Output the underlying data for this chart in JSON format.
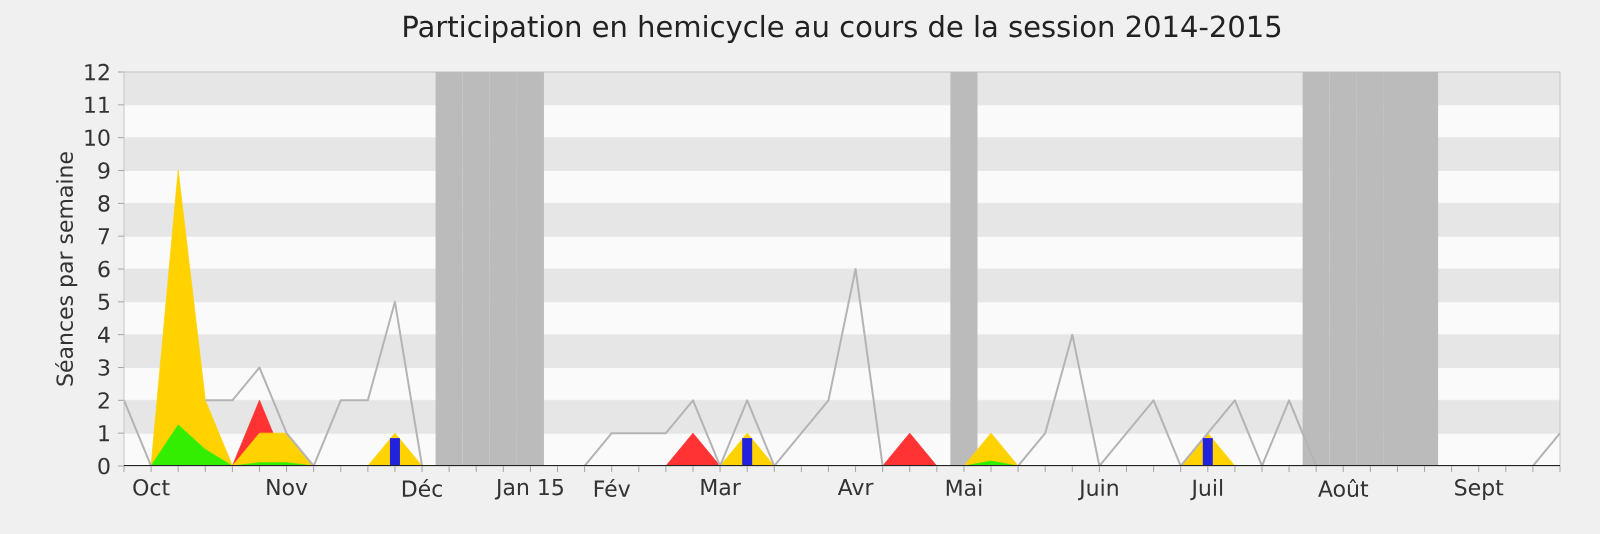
{
  "chart_data": {
    "type": "area",
    "title": "Participation en hemicycle au cours de la session 2014-2015",
    "ylabel": "Séances par semaine",
    "grid": "y",
    "categories": [
      null,
      "Oct",
      null,
      null,
      null,
      null,
      "Nov",
      null,
      null,
      null,
      null,
      "Déc",
      null,
      null,
      null,
      "Jan 15",
      null,
      null,
      "Fév",
      null,
      null,
      null,
      "Mar",
      null,
      null,
      null,
      null,
      "Avr",
      null,
      null,
      null,
      "Mai",
      null,
      null,
      null,
      null,
      "Juin",
      null,
      null,
      null,
      "Juil",
      null,
      null,
      null,
      null,
      "Août",
      null,
      null,
      null,
      null,
      "Sept",
      null,
      null,
      null
    ],
    "ylim": [
      0,
      12
    ],
    "yticks": [
      0,
      1,
      2,
      3,
      4,
      5,
      6,
      7,
      8,
      9,
      10,
      11,
      12
    ],
    "series": [
      {
        "color": "#ff3333",
        "values": [
          0,
          0,
          0,
          0,
          0,
          2,
          0,
          0,
          0,
          0,
          0,
          0,
          0,
          0,
          0,
          0,
          0,
          0,
          0,
          0,
          0,
          1,
          0,
          0,
          0,
          0,
          0,
          0,
          0,
          1,
          0,
          0,
          0,
          0,
          0,
          0,
          0,
          0,
          0,
          0,
          0,
          0,
          0,
          0,
          0,
          0,
          0,
          0,
          0,
          0,
          0,
          0,
          0,
          0
        ]
      },
      {
        "color": "#ffd200",
        "values": [
          0,
          0,
          9,
          2,
          0,
          1,
          1,
          0,
          0,
          0,
          1,
          0,
          0,
          0,
          0,
          0,
          0,
          0,
          0,
          0,
          0,
          0,
          0,
          1,
          0,
          0,
          0,
          0,
          0,
          0,
          0,
          0,
          1,
          0,
          0,
          0,
          0,
          0,
          0,
          0,
          1,
          0,
          0,
          0,
          0,
          0,
          0,
          0,
          0,
          0,
          0,
          0,
          0,
          0
        ]
      },
      {
        "color": "#33ee00",
        "values": [
          0,
          0,
          1.25,
          0.5,
          0,
          0.1,
          0.1,
          0,
          0,
          0,
          0,
          0,
          0,
          0,
          0,
          0,
          0,
          0,
          0,
          0,
          0,
          0,
          0,
          0,
          0,
          0,
          0,
          0,
          0,
          0,
          0,
          0,
          0.15,
          0,
          0,
          0,
          0,
          0,
          0,
          0,
          0,
          0,
          0,
          0,
          0,
          0,
          0,
          0,
          0,
          0,
          0,
          0,
          0,
          0
        ]
      },
      {
        "type": "line",
        "color": "#b4b4b4",
        "values": [
          2,
          0,
          null,
          2,
          2,
          3,
          1,
          0,
          2,
          2,
          5,
          0,
          0,
          0,
          0,
          0,
          0,
          0,
          1,
          1,
          1,
          2,
          0,
          2,
          0,
          1,
          2,
          6,
          0,
          0,
          0,
          0,
          0,
          0,
          1,
          4,
          0,
          1,
          2,
          0,
          1,
          2,
          0,
          2,
          0,
          0,
          0,
          0,
          0,
          0,
          0,
          0,
          0,
          1
        ]
      },
      {
        "type": "bar",
        "color": "#2222dd",
        "values": [
          null,
          null,
          null,
          null,
          null,
          null,
          null,
          null,
          null,
          null,
          0.85,
          null,
          null,
          null,
          null,
          null,
          null,
          null,
          null,
          null,
          null,
          null,
          null,
          0.85,
          null,
          null,
          null,
          null,
          null,
          null,
          null,
          null,
          null,
          null,
          null,
          null,
          null,
          null,
          null,
          null,
          0.85,
          null,
          null,
          null,
          null,
          null,
          null,
          null,
          null,
          null,
          null,
          null,
          null,
          null
        ]
      }
    ]
  }
}
